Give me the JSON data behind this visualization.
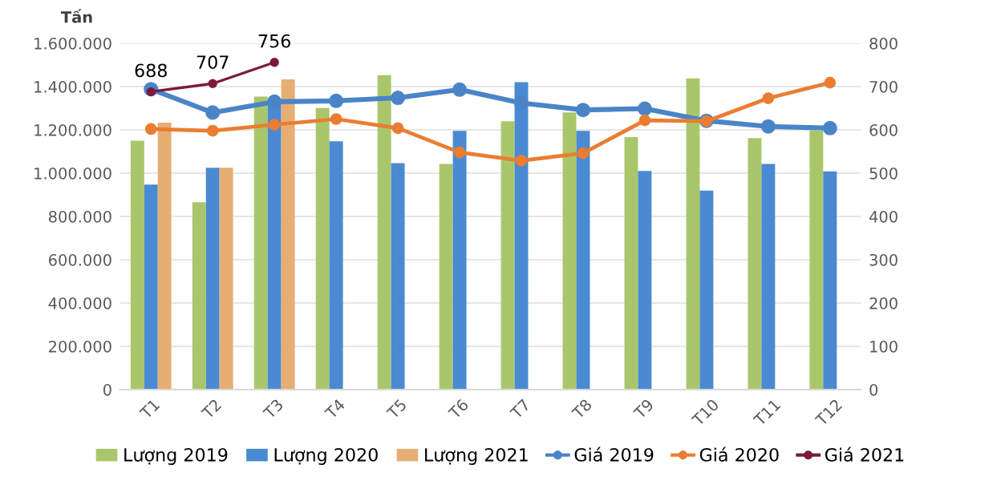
{
  "chart_data": {
    "type": "bar",
    "ylabel": "Tấn",
    "categories": [
      "T1",
      "T2",
      "T3",
      "T4",
      "T5",
      "T6",
      "T7",
      "T8",
      "T9",
      "T10",
      "T11",
      "T12"
    ],
    "series": [
      {
        "name": "Lượng 2019",
        "color": "#a9c76a",
        "values": [
          1150000,
          866000,
          1354000,
          1301000,
          1453000,
          1043000,
          1240000,
          1281000,
          1167000,
          1438000,
          1162000,
          1197000
        ]
      },
      {
        "name": "Lượng 2020",
        "color": "#4a8ad2",
        "values": [
          947000,
          1025000,
          1339000,
          1147000,
          1046000,
          1195000,
          1420000,
          1195000,
          1010000,
          919000,
          1043000,
          1008000
        ]
      },
      {
        "name": "Lượng 2021",
        "color": "#e6ae73",
        "values": [
          1233000,
          1025000,
          1433000,
          null,
          null,
          null,
          null,
          null,
          null,
          null,
          null,
          null
        ]
      },
      {
        "name": "Giá 2019",
        "type": "line",
        "axis": "y2",
        "color": "#4a84c8",
        "marker": "circle",
        "values": [
          694,
          640,
          665,
          667,
          674,
          693,
          662,
          646,
          649,
          621,
          608,
          604
        ]
      },
      {
        "name": "Giá 2020",
        "type": "line",
        "axis": "y2",
        "color": "#ea7d32",
        "marker": "circle",
        "values": [
          602,
          598,
          612,
          625,
          604,
          548,
          529,
          546,
          622,
          620,
          673,
          709
        ]
      },
      {
        "name": "Giá 2021",
        "type": "line",
        "axis": "y2",
        "color": "#7b1a3e",
        "marker": "circle",
        "values": [
          688,
          707,
          756,
          null,
          null,
          null,
          null,
          null,
          null,
          null,
          null,
          null
        ],
        "value_labels": [
          "688",
          "707",
          "756",
          null,
          null,
          null,
          null,
          null,
          null,
          null,
          null,
          null
        ]
      }
    ],
    "ylim": [
      0,
      1600000
    ],
    "yticks": [
      0,
      {
        "value": 200000,
        "label": "200.000"
      },
      {
        "value": 400000,
        "label": "400.000"
      },
      {
        "value": 600000,
        "label": "600.000"
      },
      {
        "value": 800000,
        "label": "800.000"
      },
      {
        "value": 1000000,
        "label": "1.000.000"
      },
      {
        "value": 1200000,
        "label": "1.200.000"
      },
      {
        "value": 1400000,
        "label": "1.400.000"
      },
      {
        "value": 1600000,
        "label": "1.600.000"
      }
    ],
    "y2lim": [
      0,
      800
    ],
    "y2ticks": [
      0,
      100,
      200,
      300,
      400,
      500,
      600,
      700,
      800
    ],
    "grid": "y",
    "legend": "bottom"
  }
}
